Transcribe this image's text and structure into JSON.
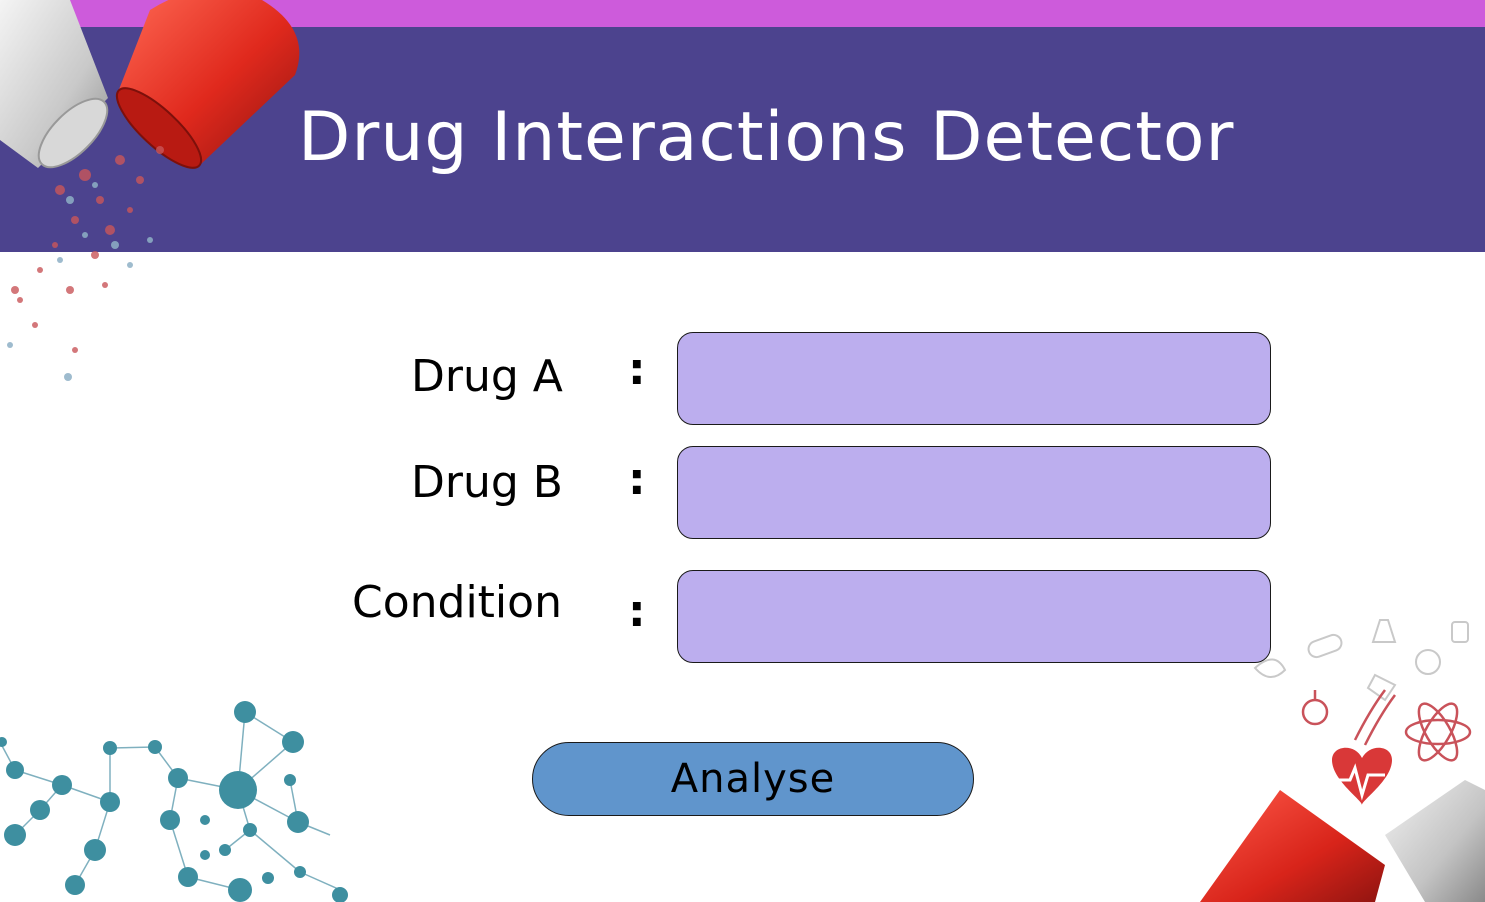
{
  "header": {
    "title": "Drug Interactions Detector"
  },
  "form": {
    "drug_a": {
      "label": "Drug A",
      "separator": ":",
      "value": ""
    },
    "drug_b": {
      "label": "Drug B",
      "separator": ":",
      "value": ""
    },
    "condition": {
      "label": "Condition",
      "separator": ":",
      "value": ""
    }
  },
  "actions": {
    "analyse_label": "Analyse"
  },
  "colors": {
    "top_strip": "#cd5bdb",
    "header_bg": "#4c438e",
    "field_bg": "#bcaeee",
    "button_bg": "#6095cc"
  },
  "decorations": [
    "capsule-icon",
    "molecule-network-icon",
    "medical-symbols-icon"
  ]
}
